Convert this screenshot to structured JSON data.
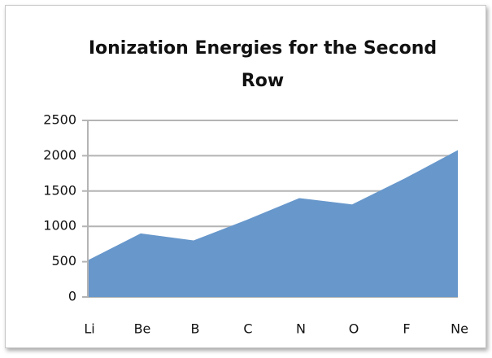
{
  "chart_data": {
    "type": "area",
    "title": "Ionization Energies for the Second Row",
    "categories": [
      "Li",
      "Be",
      "B",
      "C",
      "N",
      "O",
      "F",
      "Ne"
    ],
    "values": [
      520,
      900,
      800,
      1090,
      1400,
      1310,
      1680,
      2080
    ],
    "color": "#6797cb",
    "ylim": [
      0,
      2500
    ],
    "yticks": [
      0,
      500,
      1000,
      1500,
      2000,
      2500
    ],
    "grid": true
  }
}
